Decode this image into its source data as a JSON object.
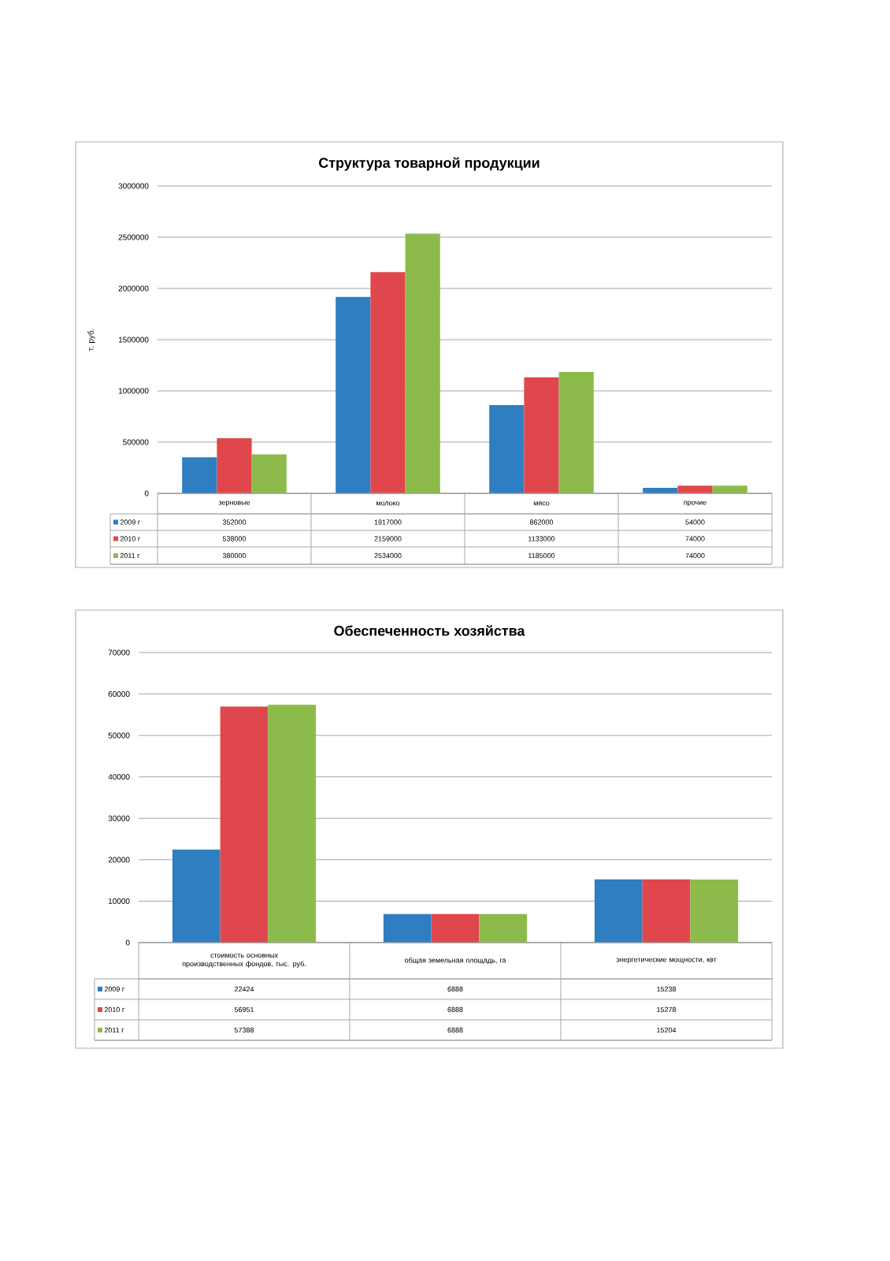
{
  "chart_data": [
    {
      "type": "bar",
      "title": "Структура товарной продукции",
      "ylabel": "т. руб.",
      "categories": [
        "зерновые",
        "молоко",
        "мясо",
        "прочие"
      ],
      "series": [
        {
          "name": "2009 г",
          "color": "#2f7ec1",
          "values": [
            352000,
            1917000,
            862000,
            54000
          ]
        },
        {
          "name": "2010 г",
          "color": "#e0474c",
          "values": [
            538000,
            2159000,
            1133000,
            74000
          ]
        },
        {
          "name": "2011 г",
          "color": "#8cbb4b",
          "values": [
            380000,
            2534000,
            1185000,
            74000
          ]
        }
      ],
      "ylim": [
        0,
        3000000
      ],
      "yticks": [
        0,
        500000,
        1000000,
        1500000,
        2000000,
        2500000,
        3000000
      ],
      "grid": "y",
      "legend": "bottom",
      "data_labels": true
    },
    {
      "type": "bar",
      "title": "Обеспеченность хозяйства",
      "categories": [
        "стоимость основных производственных фондов, тыс. руб.",
        "общая земельная площадь, га",
        "энергетические мощности, квт"
      ],
      "series": [
        {
          "name": "2009 г",
          "color": "#2f7ec1",
          "values": [
            22424,
            6888,
            15238
          ]
        },
        {
          "name": "2010 г",
          "color": "#e0474c",
          "values": [
            56951,
            6888,
            15278
          ]
        },
        {
          "name": "2011 г",
          "color": "#8cbb4b",
          "values": [
            57388,
            6888,
            15204
          ]
        }
      ],
      "ylim": [
        0,
        70000
      ],
      "yticks": [
        0,
        10000,
        20000,
        30000,
        40000,
        50000,
        60000,
        70000
      ],
      "grid": "y",
      "legend": "bottom",
      "data_labels": true
    }
  ]
}
